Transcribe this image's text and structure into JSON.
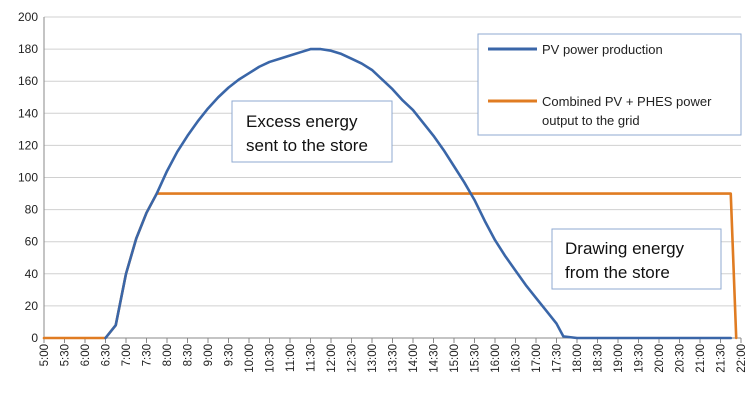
{
  "chart_data": {
    "type": "line",
    "title": "",
    "xlabel": "",
    "ylabel": "",
    "ylim": [
      0,
      200
    ],
    "yticks": [
      0,
      20,
      40,
      60,
      80,
      100,
      120,
      140,
      160,
      180,
      200
    ],
    "xticks": [
      "5:00",
      "5:30",
      "6:00",
      "6:30",
      "7:00",
      "7:30",
      "8:00",
      "8:30",
      "9:00",
      "9:30",
      "10:00",
      "10:30",
      "11:00",
      "11:30",
      "12:00",
      "12:30",
      "13:00",
      "13:30",
      "14:00",
      "14:30",
      "15:00",
      "15:30",
      "16:00",
      "16:30",
      "17:00",
      "17:30",
      "18:00",
      "18:30",
      "19:00",
      "19:30",
      "20:00",
      "20:30",
      "21:00",
      "21:30",
      "22:00"
    ],
    "grid": true,
    "legend": {
      "placement": "top-right",
      "entries": [
        "PV power production",
        "Combined PV + PHES power",
        "output to the grid"
      ]
    },
    "series": [
      {
        "name": "PV power production",
        "color": "#3a66a8",
        "points": [
          [
            "6:30",
            0
          ],
          [
            "6:45",
            8
          ],
          [
            "7:00",
            40
          ],
          [
            "7:15",
            62
          ],
          [
            "7:30",
            78
          ],
          [
            "7:45",
            90
          ],
          [
            "8:00",
            104
          ],
          [
            "8:15",
            116
          ],
          [
            "8:30",
            126
          ],
          [
            "8:45",
            135
          ],
          [
            "9:00",
            143
          ],
          [
            "9:15",
            150
          ],
          [
            "9:30",
            156
          ],
          [
            "9:45",
            161
          ],
          [
            "10:00",
            165
          ],
          [
            "10:15",
            169
          ],
          [
            "10:30",
            172
          ],
          [
            "10:45",
            174
          ],
          [
            "11:00",
            176
          ],
          [
            "11:15",
            178
          ],
          [
            "11:30",
            180
          ],
          [
            "11:45",
            180
          ],
          [
            "12:00",
            179
          ],
          [
            "12:15",
            177
          ],
          [
            "12:30",
            174
          ],
          [
            "12:45",
            171
          ],
          [
            "13:00",
            167
          ],
          [
            "13:15",
            161
          ],
          [
            "13:30",
            155
          ],
          [
            "13:45",
            148
          ],
          [
            "14:00",
            142
          ],
          [
            "14:15",
            134
          ],
          [
            "14:30",
            126
          ],
          [
            "14:45",
            117
          ],
          [
            "15:00",
            107
          ],
          [
            "15:15",
            97
          ],
          [
            "15:30",
            86
          ],
          [
            "15:45",
            73
          ],
          [
            "16:00",
            61
          ],
          [
            "16:15",
            51
          ],
          [
            "16:30",
            42
          ],
          [
            "16:45",
            33
          ],
          [
            "17:00",
            25
          ],
          [
            "17:15",
            17
          ],
          [
            "17:30",
            9
          ],
          [
            "17:40",
            1
          ],
          [
            "18:00",
            0
          ],
          [
            "21:45",
            0
          ]
        ]
      },
      {
        "name": "Combined PV + PHES power output to the grid",
        "color": "#e07c22",
        "points": [
          [
            "5:00",
            0
          ],
          [
            "6:30",
            0
          ],
          [
            "6:45",
            8
          ],
          [
            "7:00",
            40
          ],
          [
            "7:15",
            62
          ],
          [
            "7:30",
            78
          ],
          [
            "7:45",
            90
          ],
          [
            "21:45",
            90
          ],
          [
            "21:53",
            0
          ]
        ]
      }
    ],
    "annotations": [
      {
        "text": [
          "Excess energy",
          "sent to the store"
        ]
      },
      {
        "text": [
          "Drawing energy",
          "from the store"
        ]
      }
    ]
  }
}
